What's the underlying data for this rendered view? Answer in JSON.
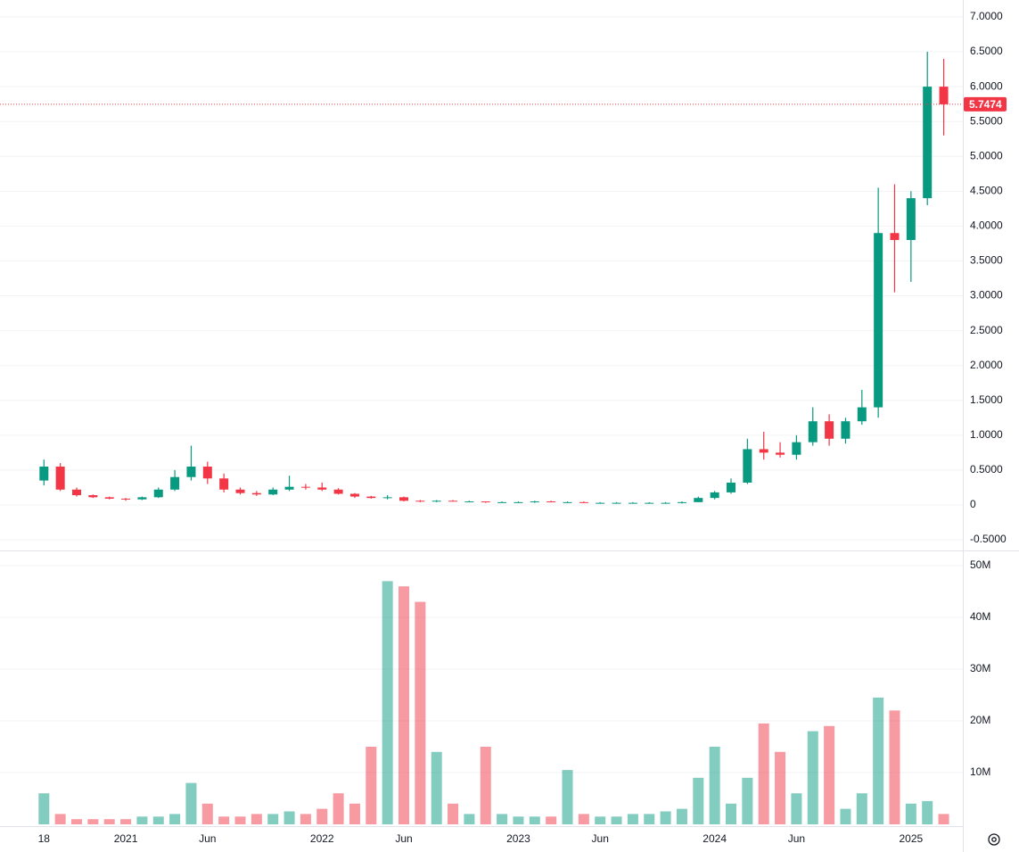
{
  "chart_data": [
    {
      "type": "candlestick",
      "open": [
        0.35,
        0.55,
        0.22,
        0.14,
        0.11,
        0.09,
        0.08,
        0.11,
        0.22,
        0.4,
        0.55,
        0.38,
        0.22,
        0.17,
        0.15,
        0.22,
        0.26,
        0.25,
        0.22,
        0.16,
        0.12,
        0.1,
        0.11,
        0.06,
        0.05,
        0.06,
        0.05,
        0.05,
        0.04,
        0.04,
        0.04,
        0.05,
        0.04,
        0.04,
        0.03,
        0.03,
        0.03,
        0.03,
        0.03,
        0.03,
        0.04,
        0.1,
        0.18,
        0.32,
        0.8,
        0.75,
        0.72,
        0.9,
        1.2,
        0.95,
        1.2,
        1.4,
        3.9,
        3.8,
        4.4,
        6.0
      ],
      "high": [
        0.65,
        0.6,
        0.25,
        0.15,
        0.12,
        0.1,
        0.12,
        0.25,
        0.5,
        0.85,
        0.62,
        0.45,
        0.25,
        0.2,
        0.25,
        0.42,
        0.3,
        0.32,
        0.24,
        0.17,
        0.13,
        0.14,
        0.12,
        0.07,
        0.07,
        0.07,
        0.06,
        0.05,
        0.05,
        0.05,
        0.06,
        0.06,
        0.05,
        0.05,
        0.04,
        0.04,
        0.04,
        0.04,
        0.04,
        0.05,
        0.12,
        0.2,
        0.38,
        0.95,
        1.05,
        0.9,
        1.0,
        1.4,
        1.3,
        1.25,
        1.65,
        4.55,
        4.6,
        4.5,
        6.5,
        6.4
      ],
      "low": [
        0.28,
        0.2,
        0.12,
        0.1,
        0.08,
        0.06,
        0.07,
        0.1,
        0.2,
        0.35,
        0.3,
        0.18,
        0.15,
        0.13,
        0.14,
        0.2,
        0.22,
        0.2,
        0.15,
        0.1,
        0.09,
        0.08,
        0.05,
        0.04,
        0.04,
        0.05,
        0.04,
        0.03,
        0.03,
        0.03,
        0.03,
        0.04,
        0.03,
        0.03,
        0.02,
        0.02,
        0.02,
        0.02,
        0.02,
        0.02,
        0.04,
        0.08,
        0.16,
        0.3,
        0.65,
        0.68,
        0.65,
        0.85,
        0.85,
        0.88,
        1.15,
        1.25,
        3.05,
        3.2,
        4.3,
        5.3
      ],
      "close": [
        0.55,
        0.22,
        0.14,
        0.11,
        0.09,
        0.08,
        0.11,
        0.22,
        0.4,
        0.55,
        0.38,
        0.22,
        0.17,
        0.15,
        0.22,
        0.26,
        0.25,
        0.22,
        0.16,
        0.12,
        0.1,
        0.11,
        0.06,
        0.05,
        0.06,
        0.05,
        0.05,
        0.04,
        0.04,
        0.04,
        0.05,
        0.04,
        0.04,
        0.03,
        0.03,
        0.03,
        0.03,
        0.03,
        0.03,
        0.04,
        0.1,
        0.18,
        0.32,
        0.8,
        0.75,
        0.72,
        0.9,
        1.2,
        0.95,
        1.2,
        1.4,
        3.9,
        3.8,
        4.4,
        6.0,
        5.7474
      ],
      "last_value": 5.7474,
      "up_color": "#089981",
      "down_color": "#f23645",
      "ylim": [
        -0.653,
        7.243
      ],
      "yticks": [
        {
          "value": 7,
          "label": "7.0000"
        },
        {
          "value": 6.5,
          "label": "6.5000"
        },
        {
          "value": 6,
          "label": "6.0000"
        },
        {
          "value": 5.5,
          "label": "5.5000"
        },
        {
          "value": 5,
          "label": "5.0000"
        },
        {
          "value": 4.5,
          "label": "4.5000"
        },
        {
          "value": 4,
          "label": "4.0000"
        },
        {
          "value": 3.5,
          "label": "3.5000"
        },
        {
          "value": 3,
          "label": "3.0000"
        },
        {
          "value": 2.5,
          "label": "2.5000"
        },
        {
          "value": 2,
          "label": "2.0000"
        },
        {
          "value": 1.5,
          "label": "1.5000"
        },
        {
          "value": 1,
          "label": "1.0000"
        },
        {
          "value": 0.5,
          "label": "0.5000"
        },
        0,
        {
          "value": -0.5,
          "label": "-0.5000"
        }
      ],
      "grid": true
    },
    {
      "type": "bar",
      "categories": [
        "18",
        null,
        null,
        null,
        null,
        "2021",
        null,
        null,
        null,
        null,
        "Jun",
        null,
        null,
        null,
        null,
        null,
        null,
        "2022",
        null,
        null,
        null,
        null,
        "Jun",
        null,
        null,
        null,
        null,
        null,
        null,
        "2023",
        null,
        null,
        null,
        null,
        "Jun",
        null,
        null,
        null,
        null,
        null,
        null,
        "2024",
        null,
        null,
        null,
        null,
        "Jun",
        null,
        null,
        null,
        null,
        null,
        null,
        "2025",
        null,
        null
      ],
      "values": [
        6000000,
        2000000,
        1000000,
        1000000,
        1000000,
        1000000,
        1500000,
        1500000,
        2000000,
        8000000,
        4000000,
        1500000,
        1500000,
        2000000,
        2000000,
        2500000,
        2000000,
        3000000,
        6000000,
        4000000,
        15000000,
        47000000,
        46000000,
        43000000,
        14000000,
        4000000,
        2000000,
        15000000,
        2000000,
        1500000,
        1500000,
        1500000,
        10500000,
        2000000,
        1500000,
        1500000,
        2000000,
        2000000,
        2500000,
        3000000,
        9000000,
        15000000,
        4000000,
        9000000,
        19500000,
        14000000,
        6000000,
        18000000,
        19000000,
        3000000,
        6000000,
        24500000,
        22000000,
        4000000,
        4500000,
        2000000
      ],
      "ylim": [
        0,
        52760000
      ],
      "yticks": [
        {
          "value": 50000000,
          "label": "50M"
        },
        {
          "value": 40000000,
          "label": "40M"
        },
        {
          "value": 30000000,
          "label": "30M"
        },
        {
          "value": 20000000,
          "label": "20M"
        },
        {
          "value": 10000000,
          "label": "10M"
        }
      ],
      "grid": true
    }
  ]
}
